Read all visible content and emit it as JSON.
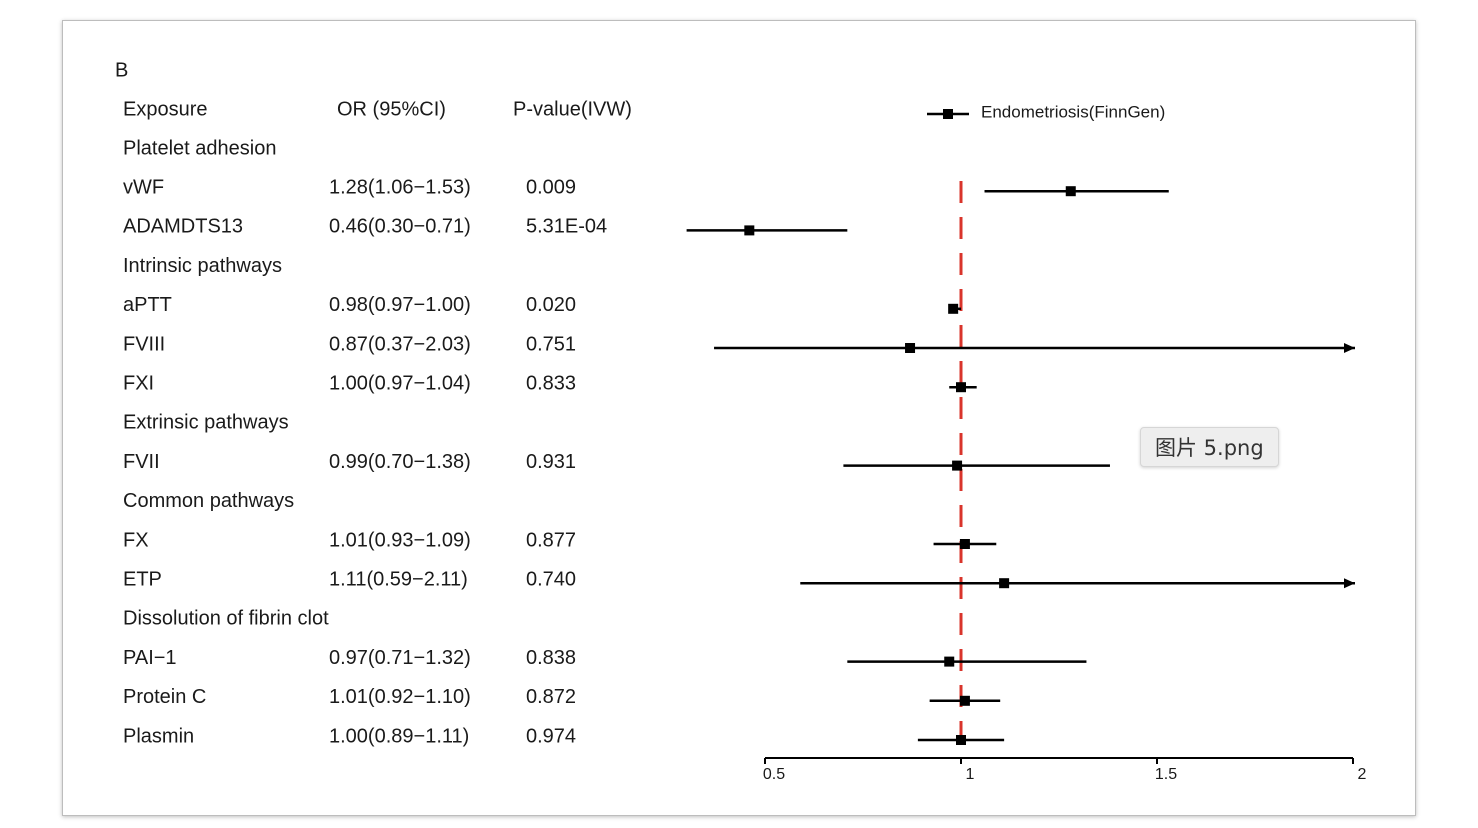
{
  "tooltip": {
    "text": "图片 5.png"
  },
  "chart_data": {
    "type": "forest",
    "panel_label": "B",
    "legend": {
      "label": "Endometriosis(FinnGen)",
      "placement": "top-right"
    },
    "headers": {
      "exposure": "Exposure",
      "or_ci": "OR (95%CI)",
      "p": "P-value(IVW)"
    },
    "reference_line": {
      "value": 1,
      "color": "#d9342b",
      "style": "dashed"
    },
    "x_axis": {
      "range": [
        0.5,
        2
      ],
      "ticks": [
        0.5,
        1,
        1.5,
        2
      ],
      "tick_labels": [
        "0.5",
        "1",
        "1.5",
        "2"
      ]
    },
    "rows": [
      {
        "type": "group",
        "label": "Platelet adhesion"
      },
      {
        "type": "item",
        "exposure": "vWF",
        "or_text": "1.28(1.06−1.53)",
        "p_text": "0.009",
        "or": 1.28,
        "lo": 1.06,
        "hi": 1.53
      },
      {
        "type": "item",
        "exposure": "ADAMDTS13",
        "or_text": "0.46(0.30−0.71)",
        "p_text": "5.31E-04",
        "or": 0.46,
        "lo": 0.3,
        "hi": 0.71
      },
      {
        "type": "group",
        "label": "Intrinsic pathways"
      },
      {
        "type": "item",
        "exposure": "aPTT",
        "or_text": "0.98(0.97−1.00)",
        "p_text": "0.020",
        "or": 0.98,
        "lo": 0.97,
        "hi": 1.0
      },
      {
        "type": "item",
        "exposure": "FVIII",
        "or_text": "0.87(0.37−2.03)",
        "p_text": "0.751",
        "or": 0.87,
        "lo": 0.37,
        "hi": 2.03
      },
      {
        "type": "item",
        "exposure": "FXI",
        "or_text": "1.00(0.97−1.04)",
        "p_text": "0.833",
        "or": 1.0,
        "lo": 0.97,
        "hi": 1.04
      },
      {
        "type": "group",
        "label": "Extrinsic pathways"
      },
      {
        "type": "item",
        "exposure": "FVII",
        "or_text": "0.99(0.70−1.38)",
        "p_text": "0.931",
        "or": 0.99,
        "lo": 0.7,
        "hi": 1.38
      },
      {
        "type": "group",
        "label": "Common pathways"
      },
      {
        "type": "item",
        "exposure": "FX",
        "or_text": "1.01(0.93−1.09)",
        "p_text": "0.877",
        "or": 1.01,
        "lo": 0.93,
        "hi": 1.09
      },
      {
        "type": "item",
        "exposure": "ETP",
        "or_text": "1.11(0.59−2.11)",
        "p_text": "0.740",
        "or": 1.11,
        "lo": 0.59,
        "hi": 2.11
      },
      {
        "type": "group",
        "label": "Dissolution of fibrin clot"
      },
      {
        "type": "item",
        "exposure": "PAI−1",
        "or_text": "0.97(0.71−1.32)",
        "p_text": "0.838",
        "or": 0.97,
        "lo": 0.71,
        "hi": 1.32
      },
      {
        "type": "item",
        "exposure": "Protein C",
        "or_text": "1.01(0.92−1.10)",
        "p_text": "0.872",
        "or": 1.01,
        "lo": 0.92,
        "hi": 1.1
      },
      {
        "type": "item",
        "exposure": "Plasmin",
        "or_text": "1.00(0.89−1.11)",
        "p_text": "0.974",
        "or": 1.0,
        "lo": 0.89,
        "hi": 1.11
      }
    ]
  }
}
